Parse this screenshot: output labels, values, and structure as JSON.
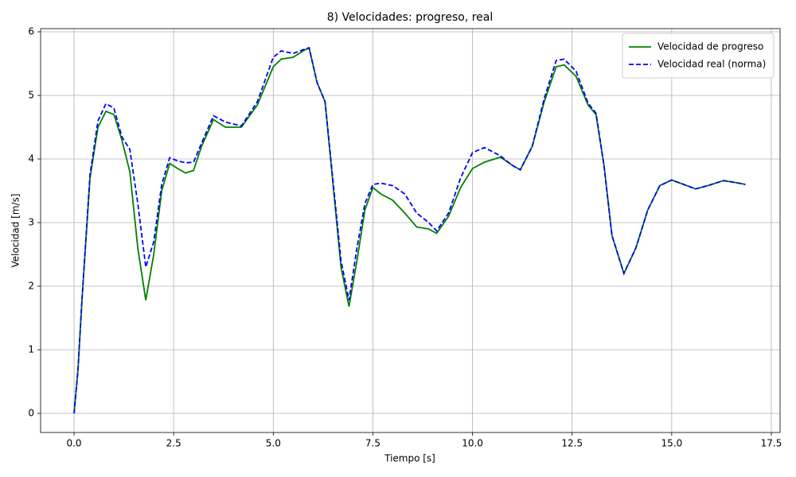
{
  "chart_data": {
    "type": "line",
    "title": "8) Velocidades: progreso, real",
    "x_label": "Tiempo [s]",
    "y_label": "Velocidad [m/s]",
    "x": [
      0,
      0.1,
      0.2,
      0.4,
      0.6,
      0.8,
      1.0,
      1.2,
      1.4,
      1.6,
      1.8,
      2.0,
      2.2,
      2.4,
      2.6,
      2.8,
      3.0,
      3.2,
      3.5,
      3.8,
      4.2,
      4.6,
      5.0,
      5.2,
      5.5,
      5.8,
      5.9,
      6.1,
      6.3,
      6.5,
      6.7,
      6.9,
      7.1,
      7.3,
      7.5,
      7.7,
      8.0,
      8.3,
      8.6,
      8.9,
      9.1,
      9.4,
      9.7,
      10.0,
      10.3,
      10.7,
      11.0,
      11.2,
      11.5,
      11.8,
      12.1,
      12.3,
      12.6,
      12.9,
      13.1,
      13.3,
      13.5,
      13.8,
      14.1,
      14.4,
      14.7,
      15.0,
      15.3,
      15.6,
      15.9,
      16.3,
      16.6,
      16.85
    ],
    "series": [
      {
        "name": "Velocidad de progreso",
        "color": "#008000",
        "linestyle": "solid",
        "values": [
          0,
          0.7,
          1.8,
          3.7,
          4.5,
          4.75,
          4.7,
          4.3,
          3.8,
          2.6,
          1.78,
          2.5,
          3.5,
          3.93,
          3.85,
          3.78,
          3.82,
          4.2,
          4.62,
          4.5,
          4.5,
          4.85,
          5.45,
          5.57,
          5.6,
          5.72,
          5.74,
          5.2,
          4.9,
          3.6,
          2.3,
          1.68,
          2.4,
          3.2,
          3.55,
          3.45,
          3.35,
          3.15,
          2.93,
          2.9,
          2.83,
          3.1,
          3.55,
          3.85,
          3.95,
          4.03,
          3.9,
          3.83,
          4.2,
          4.9,
          5.45,
          5.48,
          5.3,
          4.85,
          4.7,
          3.9,
          2.8,
          2.2,
          2.6,
          3.2,
          3.58,
          3.67,
          3.6,
          3.53,
          3.58,
          3.66,
          3.63,
          3.6
        ]
      },
      {
        "name": "Velocidad real (norma)",
        "color": "#0000ff",
        "linestyle": "dashed",
        "values": [
          0,
          0.7,
          1.8,
          3.75,
          4.6,
          4.87,
          4.8,
          4.35,
          4.15,
          3.3,
          2.3,
          2.7,
          3.6,
          4.02,
          3.97,
          3.94,
          3.95,
          4.25,
          4.68,
          4.58,
          4.52,
          4.9,
          5.6,
          5.7,
          5.66,
          5.73,
          5.75,
          5.2,
          4.9,
          3.65,
          2.4,
          1.78,
          2.6,
          3.3,
          3.6,
          3.62,
          3.58,
          3.45,
          3.15,
          3.0,
          2.87,
          3.15,
          3.7,
          4.1,
          4.18,
          4.05,
          3.9,
          3.83,
          4.2,
          4.95,
          5.55,
          5.57,
          5.38,
          4.88,
          4.72,
          3.9,
          2.8,
          2.2,
          2.6,
          3.2,
          3.58,
          3.67,
          3.6,
          3.53,
          3.58,
          3.66,
          3.63,
          3.6
        ]
      }
    ],
    "xlim": [
      -0.84,
      17.72
    ],
    "ylim": [
      -0.3,
      6.05
    ],
    "xticks": [
      {
        "value": 0,
        "label": "0.0"
      },
      2.5,
      {
        "value": 5,
        "label": "5.0"
      },
      7.5,
      {
        "value": 10,
        "label": "10.0"
      },
      12.5,
      {
        "value": 15,
        "label": "15.0"
      },
      17.5
    ],
    "yticks": [
      0,
      1,
      2,
      3,
      4,
      5,
      6
    ],
    "grid": true,
    "legend": "upper right"
  }
}
